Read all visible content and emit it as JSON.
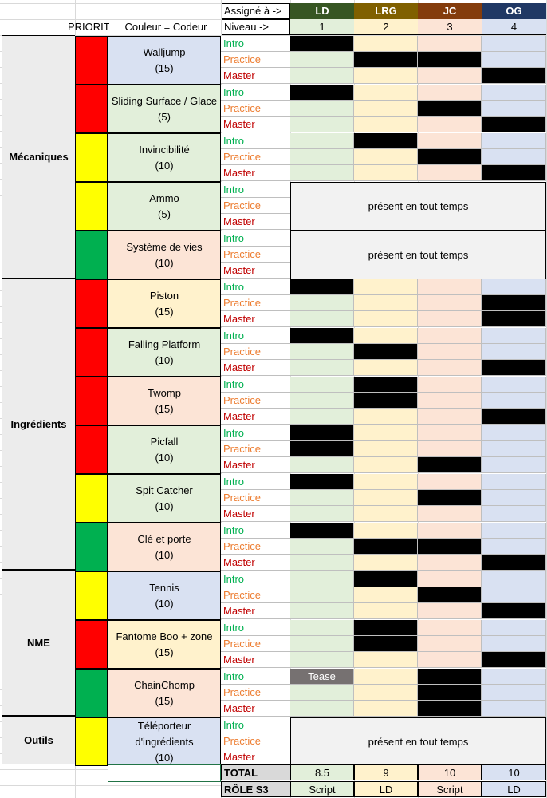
{
  "colors": {
    "ld": "#375623",
    "lrg": "#806000",
    "jc": "#843c0c",
    "og": "#203864",
    "ld_light": "#e2efda",
    "lrg_light": "#fff2cc",
    "jc_light": "#fce4d6",
    "og_light": "#d9e1f2",
    "red": "#ff0000",
    "yellow": "#ffff00",
    "green": "#00b050"
  },
  "header": {
    "assigned_label": "Assigné à ->",
    "level_label": "Niveau ->",
    "priority_label": "PRIORIT",
    "color_label": "Couleur = Codeur",
    "teams": [
      {
        "name": "LD",
        "level": "1"
      },
      {
        "name": "LRG",
        "level": "2"
      },
      {
        "name": "JC",
        "level": "3"
      },
      {
        "name": "OG",
        "level": "4"
      }
    ]
  },
  "phases": [
    "Intro",
    "Practice",
    "Master"
  ],
  "always_text": "présent en tout temps",
  "tease_text": "Tease",
  "categories": [
    {
      "name": "Mécaniques"
    },
    {
      "name": "Ingrédients"
    },
    {
      "name": "NME"
    },
    {
      "name": "Outils"
    }
  ],
  "features": [
    {
      "name": "Walljump",
      "points": "(15)",
      "priority": "red",
      "owner": "og_light",
      "fill": [
        [
          1,
          0,
          0,
          0
        ],
        [
          0,
          1,
          1,
          0
        ],
        [
          0,
          0,
          0,
          1
        ]
      ]
    },
    {
      "name": "Sliding Surface / Glace",
      "points": "(5)",
      "priority": "red",
      "owner": "ld_light",
      "fill": [
        [
          1,
          0,
          0,
          0
        ],
        [
          0,
          0,
          1,
          0
        ],
        [
          0,
          0,
          0,
          1
        ]
      ]
    },
    {
      "name": "Invincibilité",
      "points": "(10)",
      "priority": "yellow",
      "owner": "ld_light",
      "fill": [
        [
          0,
          1,
          0,
          0
        ],
        [
          0,
          0,
          1,
          0
        ],
        [
          0,
          0,
          0,
          1
        ]
      ]
    },
    {
      "name": "Ammo",
      "points": "(5)",
      "priority": "yellow",
      "owner": "ld_light",
      "always": true
    },
    {
      "name": "Système de vies",
      "points": "(10)",
      "priority": "green",
      "owner": "jc_light",
      "always": true
    },
    {
      "name": "Piston",
      "points": "(15)",
      "priority": "red",
      "owner": "lrg_light",
      "fill": [
        [
          1,
          0,
          0,
          0
        ],
        [
          0,
          0,
          0,
          1
        ],
        [
          0,
          0,
          0,
          1
        ]
      ]
    },
    {
      "name": "Falling Platform",
      "points": "(10)",
      "priority": "red",
      "owner": "ld_light",
      "fill": [
        [
          1,
          0,
          0,
          0
        ],
        [
          0,
          1,
          0,
          0
        ],
        [
          0,
          0,
          0,
          1
        ]
      ]
    },
    {
      "name": "Twomp",
      "points": "(15)",
      "priority": "red",
      "owner": "jc_light",
      "fill": [
        [
          0,
          1,
          0,
          0
        ],
        [
          0,
          1,
          0,
          0
        ],
        [
          0,
          0,
          0,
          1
        ]
      ]
    },
    {
      "name": "Picfall",
      "points": "(10)",
      "priority": "red",
      "owner": "ld_light",
      "fill": [
        [
          1,
          0,
          0,
          0
        ],
        [
          1,
          0,
          0,
          0
        ],
        [
          0,
          0,
          1,
          0
        ]
      ]
    },
    {
      "name": "Spit Catcher",
      "points": "(10)",
      "priority": "yellow",
      "owner": "ld_light",
      "fill": [
        [
          1,
          0,
          0,
          0
        ],
        [
          0,
          0,
          1,
          0
        ],
        [
          0,
          0,
          0,
          0
        ]
      ]
    },
    {
      "name": "Clé et porte",
      "points": "(10)",
      "priority": "green",
      "owner": "jc_light",
      "fill": [
        [
          1,
          0,
          0,
          0
        ],
        [
          0,
          1,
          1,
          0
        ],
        [
          0,
          0,
          0,
          1
        ]
      ]
    },
    {
      "name": "Tennis",
      "points": "(10)",
      "priority": "yellow",
      "owner": "og_light",
      "fill": [
        [
          0,
          1,
          0,
          0
        ],
        [
          0,
          0,
          1,
          0
        ],
        [
          0,
          0,
          0,
          1
        ]
      ]
    },
    {
      "name": "Fantome Boo + zone",
      "points": "(15)",
      "priority": "red",
      "owner": "lrg_light",
      "fill": [
        [
          0,
          1,
          0,
          0
        ],
        [
          0,
          1,
          0,
          0
        ],
        [
          0,
          0,
          0,
          1
        ]
      ]
    },
    {
      "name": "ChainChomp",
      "points": "(15)",
      "priority": "green",
      "owner": "jc_light",
      "fill": [
        [
          2,
          0,
          1,
          0
        ],
        [
          0,
          0,
          1,
          0
        ],
        [
          0,
          0,
          1,
          0
        ]
      ]
    },
    {
      "name": "Téléporteur d'ingrédients",
      "name_lines": [
        "Téléporteur",
        "d'ingrédients"
      ],
      "points": "(10)",
      "priority": "yellow",
      "owner": "og_light",
      "always": true
    }
  ],
  "footer": {
    "total_label": "TOTAL",
    "totals": [
      "8.5",
      "9",
      "10",
      "10"
    ],
    "role_label": "RÔLE S3",
    "roles": [
      "Script",
      "LD",
      "Script",
      "LD"
    ]
  }
}
